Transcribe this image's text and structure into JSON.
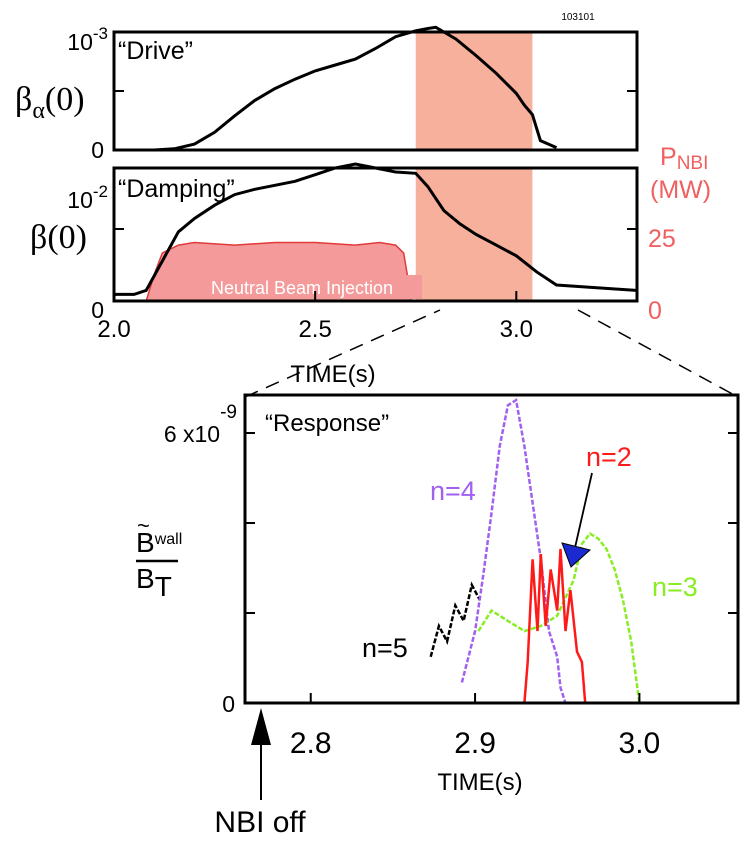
{
  "figure_id": "103101",
  "colors": {
    "axis": "#000000",
    "trace": "#000000",
    "window_shade": "#f7b09c",
    "nbi_fill": "#f59a9a",
    "nbi_edge": "#e03a3a",
    "nbi_label": "#f06060",
    "n2": "#ff1a1a",
    "n3": "#88ee22",
    "n4": "#a060f0",
    "n5": "#000000",
    "arrow_head": "#1a2ad0"
  },
  "chart_data": [
    {
      "id": "drive",
      "type": "line",
      "title": "“Drive”",
      "ylabel": "β",
      "ylabel_sub": "α",
      "ylabel_suffix": "(0)",
      "y_top_label": "10",
      "y_top_exp": "-3",
      "y_bottom_label": "0",
      "xlim": [
        2.0,
        3.3
      ],
      "ylim": [
        0,
        1.0
      ],
      "shaded_window": [
        2.75,
        3.04
      ],
      "x": [
        2.1,
        2.15,
        2.2,
        2.25,
        2.3,
        2.35,
        2.4,
        2.45,
        2.5,
        2.55,
        2.6,
        2.65,
        2.7,
        2.75,
        2.78,
        2.8,
        2.82,
        2.85,
        2.9,
        2.95,
        3.0,
        3.02,
        3.04,
        3.06,
        3.1
      ],
      "y": [
        0.0,
        0.01,
        0.05,
        0.15,
        0.29,
        0.42,
        0.52,
        0.6,
        0.67,
        0.72,
        0.77,
        0.86,
        0.96,
        1.01,
        1.03,
        1.04,
        1.0,
        0.94,
        0.8,
        0.65,
        0.48,
        0.38,
        0.3,
        0.08,
        0.02
      ]
    },
    {
      "id": "damping",
      "type": "line",
      "title": "“Damping”",
      "ylabel": "β",
      "ylabel_suffix": "(0)",
      "y_top_label": "10",
      "y_top_exp": "-2",
      "y_bottom_label": "0",
      "xlabel": "TIME(s)",
      "xlim": [
        2.0,
        3.3
      ],
      "ylim": [
        0,
        1.0
      ],
      "x_ticks": [
        2.0,
        2.5,
        3.0
      ],
      "x_tick_labels": [
        "2.0",
        "2.5",
        "3.0"
      ],
      "shaded_window": [
        2.75,
        3.04
      ],
      "x": [
        2.0,
        2.05,
        2.08,
        2.12,
        2.16,
        2.2,
        2.25,
        2.3,
        2.35,
        2.4,
        2.45,
        2.5,
        2.55,
        2.6,
        2.65,
        2.7,
        2.75,
        2.78,
        2.82,
        2.86,
        2.9,
        2.95,
        3.0,
        3.05,
        3.1,
        3.2,
        3.3
      ],
      "y": [
        0.05,
        0.05,
        0.08,
        0.3,
        0.52,
        0.62,
        0.72,
        0.8,
        0.84,
        0.87,
        0.9,
        0.95,
        1.0,
        1.03,
        1.0,
        0.97,
        0.96,
        0.86,
        0.68,
        0.58,
        0.5,
        0.42,
        0.34,
        0.22,
        0.12,
        0.1,
        0.08
      ],
      "secondary": {
        "label": "P",
        "label_sub": "NBI",
        "unit": "(MW)",
        "ticks": [
          0,
          25
        ],
        "tick_labels": [
          "0",
          "25"
        ],
        "ylim": [
          0,
          50
        ],
        "fill_label": "Neutral Beam Injection",
        "x": [
          2.08,
          2.1,
          2.12,
          2.16,
          2.2,
          2.3,
          2.4,
          2.5,
          2.6,
          2.66,
          2.7,
          2.72,
          2.74
        ],
        "y": [
          0,
          10,
          18,
          21,
          22,
          21,
          22,
          22,
          21,
          22,
          21,
          18,
          0
        ]
      }
    },
    {
      "id": "response",
      "type": "line",
      "title": "“Response”",
      "ylabel": "B",
      "ylabel_accent": "~",
      "ylabel_sub": "wall",
      "ylabel_denominator": "B",
      "ylabel_denominator_sub": "T",
      "y_top_label": "6 x10",
      "y_top_exp": "-9",
      "y_bottom_label": "0",
      "xlabel": "TIME(s)",
      "xlim": [
        2.76,
        3.06
      ],
      "ylim": [
        0,
        6
      ],
      "x_ticks": [
        2.8,
        2.9,
        3.0
      ],
      "x_tick_labels": [
        "2.8",
        "2.9",
        "3.0"
      ],
      "annotation": "NBI off",
      "annotation_x": 2.77,
      "series": [
        {
          "name": "n=5",
          "color": "#000000",
          "x": [
            2.873,
            2.878,
            2.883,
            2.888,
            2.893,
            2.898,
            2.903
          ],
          "y": [
            0.9,
            1.5,
            1.2,
            1.9,
            1.6,
            2.3,
            2.0
          ]
        },
        {
          "name": "n=4",
          "color": "#a060f0",
          "x": [
            2.892,
            2.9,
            2.905,
            2.91,
            2.915,
            2.92,
            2.925,
            2.93,
            2.935,
            2.94,
            2.945,
            2.95,
            2.952,
            2.955
          ],
          "y": [
            0.4,
            1.4,
            2.5,
            3.7,
            5.0,
            5.8,
            5.9,
            5.0,
            3.9,
            2.8,
            1.4,
            0.9,
            0.3,
            0.0
          ]
        },
        {
          "name": "n=3",
          "color": "#88ee22",
          "x": [
            2.902,
            2.91,
            2.92,
            2.93,
            2.94,
            2.95,
            2.96,
            2.965,
            2.97,
            2.975,
            2.98,
            2.985,
            2.99,
            2.995,
            3.0
          ],
          "y": [
            1.4,
            1.8,
            1.6,
            1.4,
            1.5,
            1.7,
            2.4,
            3.1,
            3.3,
            3.2,
            3.0,
            2.6,
            2.0,
            1.2,
            0.0
          ]
        },
        {
          "name": "n=2",
          "color": "#ff1a1a",
          "x": [
            2.93,
            2.932,
            2.935,
            2.938,
            2.94,
            2.943,
            2.946,
            2.95,
            2.952,
            2.955,
            2.958,
            2.962,
            2.965,
            2.967
          ],
          "y": [
            0.0,
            0.8,
            2.8,
            1.4,
            2.9,
            1.5,
            2.6,
            1.8,
            3.0,
            1.4,
            2.2,
            1.0,
            0.8,
            0.0
          ]
        }
      ]
    }
  ]
}
